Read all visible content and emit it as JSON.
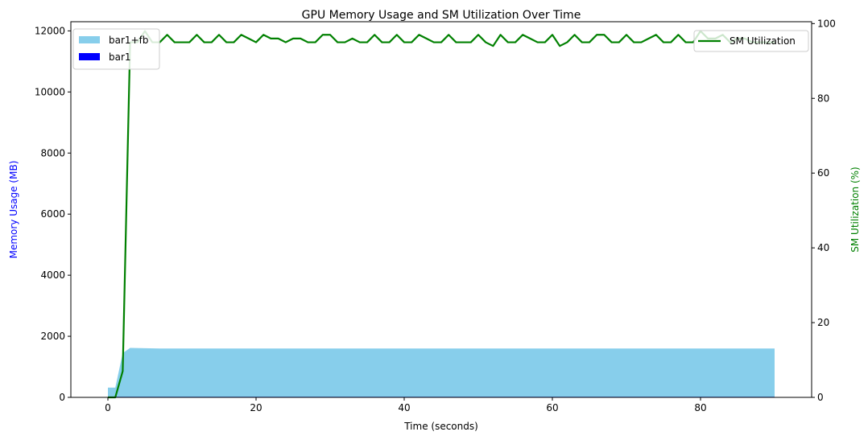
{
  "chart_data": {
    "type": "area",
    "title": "GPU Memory Usage and SM Utilization Over Time",
    "xlabel": "Time (seconds)",
    "ylabel_left": "Memory Usage (MB)",
    "ylabel_right": "SM Utilization (%)",
    "xlim": [
      -5,
      95
    ],
    "ylim_left": [
      0,
      12300
    ],
    "ylim_right": [
      0,
      100.5
    ],
    "xticks": [
      0,
      20,
      40,
      60,
      80
    ],
    "yticks_left": [
      0,
      2000,
      4000,
      6000,
      8000,
      10000,
      12000
    ],
    "yticks_right": [
      0,
      20,
      40,
      60,
      80,
      100
    ],
    "grid": false,
    "legend_left": "upper left",
    "legend_right": "upper right",
    "colors": {
      "bar1_fb": "#87CEEB",
      "bar1": "#0000FF",
      "sm": "#008000",
      "left_label": "#0000FF",
      "right_label": "#008000"
    },
    "series": [
      {
        "name": "bar1+fb",
        "axis": "left",
        "kind": "area",
        "x": [
          0,
          1,
          2,
          3,
          5,
          7,
          10,
          20,
          30,
          40,
          50,
          60,
          70,
          80,
          90
        ],
        "values": [
          320,
          320,
          1450,
          1620,
          1610,
          1600,
          1600,
          1600,
          1600,
          1600,
          1600,
          1600,
          1600,
          1600,
          1600
        ]
      },
      {
        "name": "bar1",
        "axis": "left",
        "kind": "area",
        "x": [
          0,
          90
        ],
        "values": [
          15,
          15
        ]
      },
      {
        "name": "SM Utilization",
        "axis": "right",
        "kind": "line",
        "x": [
          0,
          1,
          2,
          3,
          4,
          5,
          6,
          7,
          8,
          9,
          10,
          11,
          12,
          13,
          14,
          15,
          16,
          17,
          18,
          19,
          20,
          21,
          22,
          23,
          24,
          25,
          26,
          27,
          28,
          29,
          30,
          31,
          32,
          33,
          34,
          35,
          36,
          37,
          38,
          39,
          40,
          41,
          42,
          43,
          44,
          45,
          46,
          47,
          48,
          49,
          50,
          51,
          52,
          53,
          54,
          55,
          56,
          57,
          58,
          59,
          60,
          61,
          62,
          63,
          64,
          65,
          66,
          67,
          68,
          69,
          70,
          71,
          72,
          73,
          74,
          75,
          76,
          77,
          78,
          79,
          80,
          81,
          82,
          83,
          84,
          85,
          86,
          87,
          88,
          89,
          90
        ],
        "values": [
          0,
          0,
          7,
          95,
          95,
          98,
          95,
          95,
          97,
          95,
          95,
          95,
          97,
          95,
          95,
          97,
          95,
          95,
          97,
          96,
          95,
          97,
          96,
          96,
          95,
          96,
          96,
          95,
          95,
          97,
          97,
          95,
          95,
          96,
          95,
          95,
          97,
          95,
          95,
          97,
          95,
          95,
          97,
          96,
          95,
          95,
          97,
          95,
          95,
          95,
          97,
          95,
          94,
          97,
          95,
          95,
          97,
          96,
          95,
          95,
          97,
          94,
          95,
          97,
          95,
          95,
          97,
          97,
          95,
          95,
          97,
          95,
          95,
          96,
          97,
          95,
          95,
          97,
          95,
          95,
          98,
          96,
          96,
          97,
          95,
          96,
          96,
          95,
          95,
          95,
          95
        ]
      }
    ]
  }
}
